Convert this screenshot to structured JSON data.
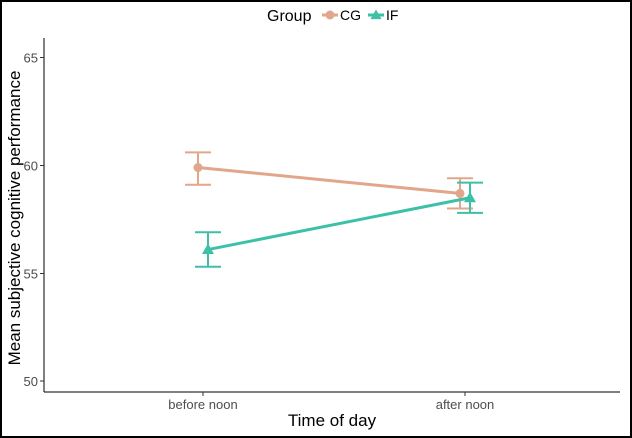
{
  "chart_data": {
    "type": "line",
    "categories": [
      "before noon",
      "after noon"
    ],
    "xlabel": "Time of day",
    "ylabel": "Mean subjective cognitive performance",
    "ylim": [
      49.5,
      65.9
    ],
    "yticks": [
      50,
      55,
      60,
      65
    ],
    "legend": {
      "title": "Group",
      "position": "top"
    },
    "grid": false,
    "series": [
      {
        "name": "CG",
        "color": "#E1A68B",
        "marker": "circle",
        "values": [
          59.9,
          58.7
        ],
        "error_lower": [
          59.1,
          58.0
        ],
        "error_upper": [
          60.6,
          59.4
        ]
      },
      {
        "name": "IF",
        "color": "#3CC1A8",
        "marker": "triangle",
        "values": [
          56.1,
          58.5
        ],
        "error_lower": [
          55.3,
          57.8
        ],
        "error_upper": [
          56.9,
          59.2
        ]
      }
    ]
  }
}
